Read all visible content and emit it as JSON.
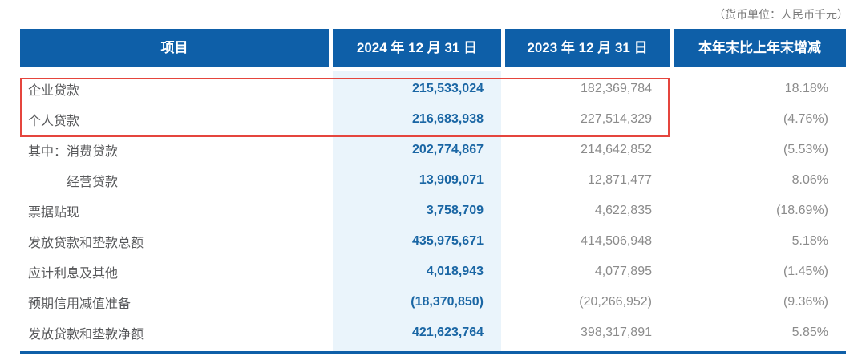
{
  "unit_note": "（货币单位：人民币千元）",
  "table": {
    "columns": [
      "项目",
      "2024 年 12 月 31 日",
      "2023 年 12 月 31 日",
      "本年末比上年末增减"
    ],
    "rows": [
      {
        "label": "企业贷款",
        "current": "215,533,024",
        "prior": "182,369,784",
        "change": "18.18%"
      },
      {
        "label": "个人贷款",
        "current": "216,683,938",
        "prior": "227,514,329",
        "change": "(4.76%)"
      },
      {
        "label": "其中：消费贷款",
        "current": "202,774,867",
        "prior": "214,642,852",
        "change": "(5.53%)"
      },
      {
        "label": "经营贷款",
        "current": "13,909,071",
        "prior": "12,871,477",
        "change": "8.06%"
      },
      {
        "label": "票据贴现",
        "current": "3,758,709",
        "prior": "4,622,835",
        "change": "(18.69%)"
      },
      {
        "label": "发放贷款和垫款总额",
        "current": "435,975,671",
        "prior": "414,506,948",
        "change": "5.18%"
      },
      {
        "label": "应计利息及其他",
        "current": "4,018,943",
        "prior": "4,077,895",
        "change": "(1.45%)"
      },
      {
        "label": "预期信用减值准备",
        "current": "(18,370,850)",
        "prior": "(20,266,952)",
        "change": "(9.36%)"
      },
      {
        "label": "发放贷款和垫款净额",
        "current": "421,623,764",
        "prior": "398,317,891",
        "change": "5.85%"
      }
    ],
    "highlighted_rows": [
      "企业贷款",
      "个人贷款"
    ],
    "colors": {
      "header_bg": "#0e5fa8",
      "header_text": "#ffffff",
      "current_column_bg": "#eaf4fb",
      "current_value_text": "#1a66a4",
      "prior_value_text": "#8b8b8b",
      "label_text": "#58595b",
      "note_text": "#7b7b7b",
      "highlight_border": "#e5453d",
      "bottom_rule": "#0e5fa8"
    }
  }
}
